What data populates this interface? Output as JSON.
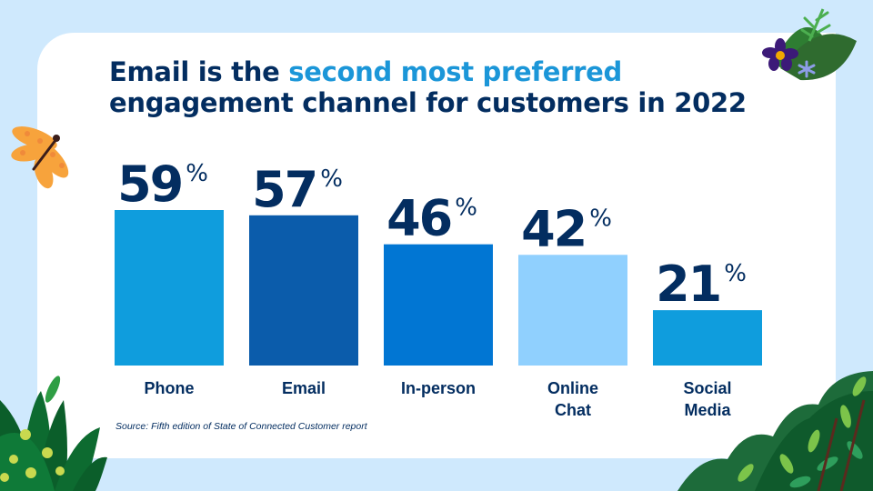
{
  "title": {
    "part1": "Email is the ",
    "highlight": "second most preferred",
    "part2": "engagement channel for customers in 2022"
  },
  "source": "Source: Fifth edition of State of Connected Customer report",
  "colors": {
    "background": "#cfe9fd",
    "card": "#ffffff",
    "text_dark": "#032d60",
    "title_highlight": "#1b96d8"
  },
  "chart_data": {
    "type": "bar",
    "title": "Email is the second most preferred engagement channel for customers in 2022",
    "xlabel": "",
    "ylabel": "",
    "ylim": [
      0,
      59
    ],
    "grid": false,
    "legend": "none",
    "value_suffix": "%",
    "categories": [
      [
        "Phone"
      ],
      [
        "Email"
      ],
      [
        "In-person"
      ],
      [
        "Online",
        "Chat"
      ],
      [
        "Social",
        "Media"
      ]
    ],
    "category_names": [
      "Phone",
      "Email",
      "In-person",
      "Online Chat",
      "Social Media"
    ],
    "values": [
      59,
      57,
      46,
      42,
      21
    ],
    "bar_colors": [
      "#0f9ddd",
      "#0b5cab",
      "#0176d3",
      "#90d0fe",
      "#0f9ddd"
    ],
    "label_color": "#032d60"
  }
}
